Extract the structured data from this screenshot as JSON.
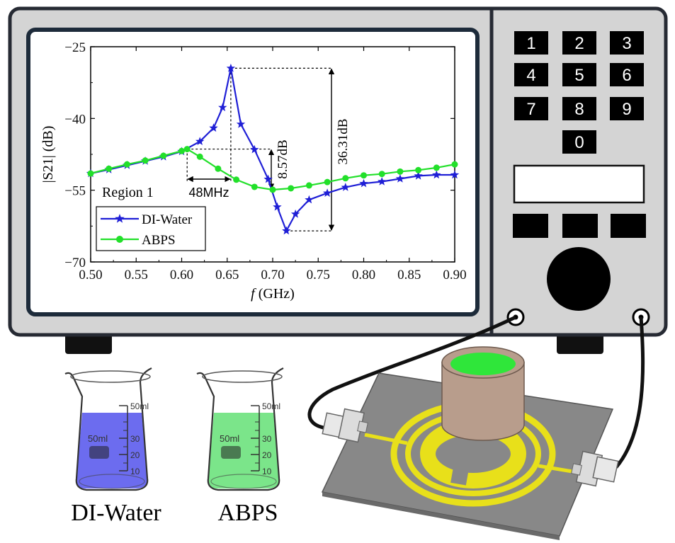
{
  "chart_data": {
    "type": "line",
    "xlabel_italic": "f",
    "xlabel_rest": " (GHz)",
    "ylabel": "|S21| (dB)",
    "xlim": [
      0.5,
      0.9
    ],
    "ylim": [
      -70,
      -25
    ],
    "xticks": [
      "0.50",
      "0.55",
      "0.60",
      "0.65",
      "0.70",
      "0.75",
      "0.80",
      "0.85",
      "0.90"
    ],
    "yticks": [
      "-25",
      "-40",
      "-55",
      "-70"
    ],
    "annotations": {
      "region": "Region 1",
      "shift": "48MHz",
      "depth_abps": "8.57dB",
      "depth_water": "36.31dB"
    },
    "series": [
      {
        "name": "DI-Water",
        "color": "#1f1fd6",
        "marker": "star",
        "x": [
          0.5,
          0.52,
          0.54,
          0.56,
          0.58,
          0.6,
          0.62,
          0.635,
          0.645,
          0.654,
          0.665,
          0.68,
          0.695,
          0.705,
          0.715,
          0.725,
          0.74,
          0.76,
          0.78,
          0.8,
          0.82,
          0.84,
          0.86,
          0.88,
          0.9
        ],
        "y": [
          -51.5,
          -50.7,
          -49.8,
          -48.9,
          -48.0,
          -46.9,
          -44.8,
          -42.0,
          -37.7,
          -29.5,
          -41.2,
          -46.5,
          -52.7,
          -58.5,
          -63.5,
          -60.0,
          -57.0,
          -55.6,
          -54.4,
          -53.6,
          -53.2,
          -52.6,
          -52.0,
          -51.8,
          -51.8
        ]
      },
      {
        "name": "ABPS",
        "color": "#22e02a",
        "marker": "circle",
        "x": [
          0.5,
          0.52,
          0.54,
          0.56,
          0.58,
          0.6,
          0.606,
          0.62,
          0.64,
          0.66,
          0.68,
          0.7,
          0.72,
          0.74,
          0.76,
          0.78,
          0.8,
          0.82,
          0.84,
          0.86,
          0.88,
          0.9
        ],
        "y": [
          -51.5,
          -50.5,
          -49.6,
          -48.8,
          -47.8,
          -46.8,
          -46.4,
          -48.0,
          -50.5,
          -52.8,
          -54.3,
          -54.9,
          -54.6,
          -54.0,
          -53.3,
          -52.5,
          -51.9,
          -51.6,
          -51.1,
          -50.8,
          -50.3,
          -49.6
        ]
      }
    ]
  },
  "keypad": {
    "keys": [
      "1",
      "2",
      "3",
      "4",
      "5",
      "6",
      "7",
      "8",
      "9",
      "0"
    ]
  },
  "beakers": [
    {
      "label": "DI-Water",
      "liquid_color": "#6c6cef",
      "marks": [
        "50ml",
        "30",
        "20",
        "10"
      ],
      "capacity": "50ml"
    },
    {
      "label": "ABPS",
      "liquid_color": "#7be58a",
      "marks": [
        "50ml",
        "30",
        "20",
        "10"
      ],
      "capacity": "50ml"
    }
  ]
}
